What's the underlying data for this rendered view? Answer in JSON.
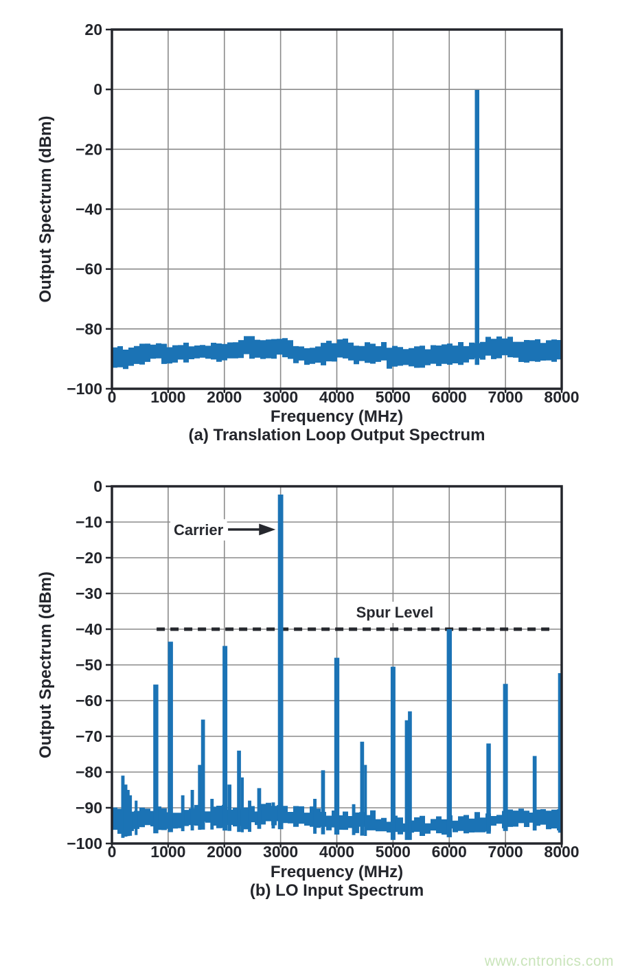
{
  "watermark": {
    "text": "www.cntronics.com",
    "color": "#c9e4ba"
  },
  "colors": {
    "bar": "#1b73b5",
    "grid": "#8a8a8a",
    "frame": "#23252b",
    "text": "#23252b",
    "annotation": "#26282e",
    "background": "#ffffff"
  },
  "chart_data": [
    {
      "id": "a",
      "type": "bar",
      "caption": "(a) Translation Loop Output Spectrum",
      "xlabel": "Frequency (MHz)",
      "ylabel": "Output Spectrum (dBm)",
      "xlim": [
        0,
        8000
      ],
      "ylim": [
        -100,
        20
      ],
      "xticks": [
        0,
        1000,
        2000,
        3000,
        4000,
        5000,
        6000,
        7000,
        8000
      ],
      "yticks": [
        20,
        0,
        -20,
        -40,
        -60,
        -80,
        -100
      ],
      "grid": true,
      "legend": null,
      "noise": {
        "jitter_top": 1.1,
        "jitter_bottom": 1.0,
        "profile": [
          [
            0,
            -85,
            -92
          ],
          [
            200,
            -87,
            -93.5
          ],
          [
            400,
            -86,
            -92
          ],
          [
            700,
            -84.5,
            -90.5
          ],
          [
            1000,
            -85.5,
            -91
          ],
          [
            1400,
            -85,
            -90.5
          ],
          [
            1800,
            -84.5,
            -90
          ],
          [
            2200,
            -84,
            -90
          ],
          [
            2500,
            -82.8,
            -89
          ],
          [
            2800,
            -83,
            -89.5
          ],
          [
            3000,
            -82.5,
            -89
          ],
          [
            3300,
            -85,
            -91
          ],
          [
            3600,
            -86.5,
            -92
          ],
          [
            3900,
            -84.5,
            -91
          ],
          [
            4100,
            -84,
            -90
          ],
          [
            4400,
            -85.5,
            -91
          ],
          [
            4800,
            -85,
            -91
          ],
          [
            5000,
            -85.5,
            -93
          ],
          [
            5200,
            -86.5,
            -92.5
          ],
          [
            5600,
            -86,
            -92
          ],
          [
            6000,
            -85.5,
            -91.5
          ],
          [
            6400,
            -85,
            -91
          ],
          [
            6700,
            -83.5,
            -89.5
          ],
          [
            6900,
            -82.5,
            -89
          ],
          [
            7100,
            -83,
            -89.5
          ],
          [
            7400,
            -84.5,
            -90.5
          ],
          [
            7700,
            -84,
            -90
          ],
          [
            8000,
            -84.5,
            -91
          ]
        ]
      },
      "spurs": [
        {
          "name": "output-tone",
          "f": 6495,
          "l": -0.2,
          "w": 80
        }
      ]
    },
    {
      "id": "b",
      "type": "bar",
      "caption": "(b) LO Input Spectrum",
      "xlabel": "Frequency (MHz)",
      "ylabel": "Output Spectrum (dBm)",
      "xlim": [
        0,
        8000
      ],
      "ylim": [
        -100,
        0
      ],
      "xticks": [
        0,
        1000,
        2000,
        3000,
        4000,
        5000,
        6000,
        7000,
        8000
      ],
      "yticks": [
        0,
        -10,
        -20,
        -30,
        -40,
        -50,
        -60,
        -70,
        -80,
        -90,
        -100
      ],
      "grid": true,
      "legend": null,
      "annotations": {
        "carrier": {
          "label": "Carrier",
          "label_f": 1540,
          "label_level": -12.1,
          "arrow_tail_f": 2065,
          "arrow_tip_f": 2910,
          "arrow_level": -12.1
        },
        "spur_level": {
          "label": "Spur Level",
          "label_f": 5030,
          "label_level": -35.2,
          "line_f0": 795,
          "line_f1": 7780,
          "line_level": -40
        }
      },
      "noise": {
        "jitter_top": 1.2,
        "jitter_bottom": 1.0,
        "profile": [
          [
            0,
            -89,
            -94.5
          ],
          [
            120,
            -91.5,
            -97.5
          ],
          [
            250,
            -90.5,
            -96.5
          ],
          [
            500,
            -90.5,
            -96
          ],
          [
            900,
            -90.5,
            -95.5
          ],
          [
            1300,
            -90.5,
            -95
          ],
          [
            1700,
            -90,
            -94.5
          ],
          [
            2100,
            -90.5,
            -95
          ],
          [
            2400,
            -91,
            -95.5
          ],
          [
            2700,
            -89.5,
            -94
          ],
          [
            3000,
            -90,
            -94.5
          ],
          [
            3400,
            -90.5,
            -95.5
          ],
          [
            3800,
            -91,
            -96
          ],
          [
            4200,
            -91.5,
            -96
          ],
          [
            4600,
            -91.5,
            -96.5
          ],
          [
            5000,
            -93,
            -97.5
          ],
          [
            5400,
            -93.5,
            -97.5
          ],
          [
            5800,
            -93,
            -97
          ],
          [
            6200,
            -92.5,
            -96.5
          ],
          [
            6600,
            -92,
            -96
          ],
          [
            7000,
            -90.5,
            -95
          ],
          [
            7300,
            -90,
            -94.5
          ],
          [
            7600,
            -90.5,
            -95
          ],
          [
            8000,
            -90.5,
            -95.5
          ]
        ]
      },
      "spurs": [
        {
          "f": 195,
          "l": -81,
          "w": 60
        },
        {
          "f": 240,
          "l": -83.5,
          "w": 70
        },
        {
          "f": 285,
          "l": -85,
          "w": 60
        },
        {
          "f": 330,
          "l": -86.5,
          "w": 50
        },
        {
          "f": 430,
          "l": -88,
          "w": 50
        },
        {
          "f": 780,
          "l": -55.5,
          "w": 90
        },
        {
          "f": 1040,
          "l": -43.5,
          "w": 90
        },
        {
          "f": 1260,
          "l": -86.5,
          "w": 60
        },
        {
          "f": 1430,
          "l": -85,
          "w": 60
        },
        {
          "f": 1560,
          "l": -78,
          "w": 60
        },
        {
          "f": 1620,
          "l": -65.3,
          "w": 70
        },
        {
          "f": 1780,
          "l": -87.5,
          "w": 60
        },
        {
          "f": 2010,
          "l": -44.7,
          "w": 85
        },
        {
          "f": 2090,
          "l": -83.5,
          "w": 70
        },
        {
          "f": 2260,
          "l": -74,
          "w": 70
        },
        {
          "f": 2320,
          "l": -81.5,
          "w": 50
        },
        {
          "f": 2450,
          "l": -88,
          "w": 60
        },
        {
          "f": 2620,
          "l": -84.5,
          "w": 70
        },
        {
          "f": 2870,
          "l": -88.5,
          "w": 60
        },
        {
          "name": "carrier-peak",
          "f": 3000,
          "l": -2.3,
          "w": 95
        },
        {
          "f": 3610,
          "l": -87.5,
          "w": 60
        },
        {
          "f": 3755,
          "l": -79.5,
          "w": 70
        },
        {
          "f": 4000,
          "l": -48,
          "w": 90
        },
        {
          "f": 4300,
          "l": -89,
          "w": 60
        },
        {
          "f": 4450,
          "l": -71.5,
          "w": 70
        },
        {
          "f": 4510,
          "l": -78,
          "w": 50
        },
        {
          "f": 5000,
          "l": -50.5,
          "w": 85
        },
        {
          "f": 5240,
          "l": -65.5,
          "w": 60
        },
        {
          "f": 5300,
          "l": -63,
          "w": 70
        },
        {
          "name": "spur-at-spur-level",
          "f": 6000,
          "l": -40,
          "w": 90
        },
        {
          "f": 6700,
          "l": -72,
          "w": 80
        },
        {
          "f": 7000,
          "l": -55.3,
          "w": 85
        },
        {
          "f": 7520,
          "l": -75.5,
          "w": 70
        },
        {
          "f": 7980,
          "l": -52.3,
          "w": 90
        }
      ]
    }
  ]
}
